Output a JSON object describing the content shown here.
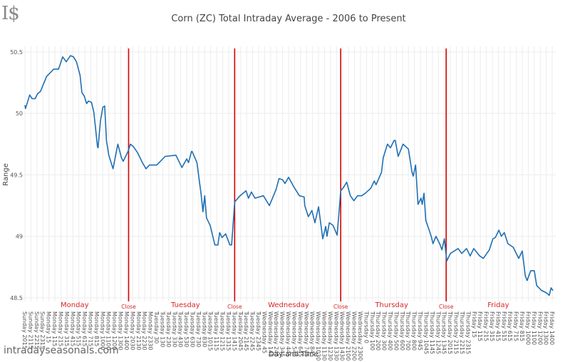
{
  "logo_text": "I$",
  "site_name": "intradayseasonals.com",
  "chart_data": {
    "type": "line",
    "title": "Corn (ZC) Total Intraday Average - 2006 to Present",
    "xlabel": "Day and Time",
    "ylabel": "Range",
    "ylim": [
      48.47,
      50.546
    ],
    "yticks": [
      48.5,
      49,
      49.5,
      50,
      50.5
    ],
    "ytick_labels": [
      "48.5",
      "49",
      "49.5",
      "50",
      "50.5"
    ],
    "grid": true,
    "colors": {
      "line": "#1f6fb2",
      "close": "#d40000",
      "annotation": "#d62728",
      "grid": "#ececec"
    },
    "categories": [
      "Sunday 2015",
      "Sunday 2115",
      "Sunday 2215",
      "Sunday 2315",
      "Monday 15",
      "Monday 115",
      "Monday 215",
      "Monday 315",
      "Monday 415",
      "Monday 515",
      "Monday 615",
      "Monday 715",
      "Monday 815",
      "Monday 1000",
      "Monday 1100",
      "Monday 1200",
      "Monday 1300",
      "Monday 1400",
      "Monday 2030",
      "Monday 2130",
      "Monday 2230",
      "Monday 2330",
      "Tuesday 30",
      "Tuesday 130",
      "Tuesday 230",
      "Tuesday 330",
      "Tuesday 430",
      "Tuesday 530",
      "Tuesday 630",
      "Tuesday 730",
      "Tuesday 830",
      "Tuesday 1015",
      "Tuesday 1115",
      "Tuesday 1215",
      "Tuesday 1315",
      "Tuesday 1415",
      "Tuesday 2045",
      "Tuesday 2145",
      "Tuesday 2245",
      "Tuesday 2345",
      "Wednesday 45",
      "Wednesday 145",
      "Wednesday 245",
      "Wednesday 345",
      "Wednesday 445",
      "Wednesday 545",
      "Wednesday 645",
      "Wednesday 745",
      "Wednesday 845",
      "Wednesday 1030",
      "Wednesday 1130",
      "Wednesday 1230",
      "Wednesday 1330",
      "Wednesday 1430",
      "Wednesday 2100",
      "Wednesday 2200",
      "Wednesday 2300",
      "Thursday 0",
      "Thursday 100",
      "Thursday 200",
      "Thursday 300",
      "Thursday 400",
      "Thursday 500",
      "Thursday 600",
      "Thursday 700",
      "Thursday 800",
      "Thursday 945",
      "Thursday 1045",
      "Thursday 1145",
      "Thursday 1245",
      "Thursday 1345",
      "Thursday 2015",
      "Thursday 2115",
      "Thursday 2215",
      "Thursday 2315",
      "Friday 15",
      "Friday 115",
      "Friday 215",
      "Friday 315",
      "Friday 415",
      "Friday 515",
      "Friday 615",
      "Friday 715",
      "Friday 815",
      "Friday 1000",
      "Friday 1100",
      "Friday 1200",
      "Friday 1300",
      "Friday 1400"
    ],
    "series": [
      {
        "name": "Average",
        "points": [
          [
            0,
            50.065
          ],
          [
            0.1,
            50.04
          ],
          [
            0.8,
            50.15
          ],
          [
            1.2,
            50.12
          ],
          [
            1.7,
            50.12
          ],
          [
            2.1,
            50.16
          ],
          [
            2.6,
            50.18
          ],
          [
            3.6,
            50.3
          ],
          [
            4.4,
            50.34
          ],
          [
            4.8,
            50.36
          ],
          [
            5.6,
            50.36
          ],
          [
            6.3,
            50.46
          ],
          [
            6.9,
            50.42
          ],
          [
            7.6,
            50.47
          ],
          [
            8.1,
            50.46
          ],
          [
            8.6,
            50.42
          ],
          [
            9.2,
            50.31
          ],
          [
            9.5,
            50.17
          ],
          [
            9.9,
            50.14
          ],
          [
            10.3,
            50.08
          ],
          [
            10.6,
            50.1
          ],
          [
            11.1,
            50.09
          ],
          [
            11.5,
            50.01
          ],
          [
            12.1,
            49.73
          ],
          [
            12.2,
            49.72
          ],
          [
            12.6,
            49.94
          ],
          [
            13.0,
            50.05
          ],
          [
            13.3,
            50.06
          ],
          [
            13.6,
            49.78
          ],
          [
            14.0,
            49.66
          ],
          [
            14.7,
            49.55
          ],
          [
            15.5,
            49.75
          ],
          [
            16.1,
            49.64
          ],
          [
            16.4,
            49.61
          ],
          [
            16.9,
            49.66
          ],
          [
            17.2,
            49.69
          ],
          [
            17.6,
            49.75
          ],
          [
            18.1,
            49.73
          ],
          [
            18.8,
            49.68
          ],
          [
            19.6,
            49.6
          ],
          [
            20.2,
            49.55
          ],
          [
            20.8,
            49.58
          ],
          [
            22.0,
            49.58
          ],
          [
            23.4,
            49.65
          ],
          [
            25.2,
            49.66
          ],
          [
            26.2,
            49.56
          ],
          [
            27.0,
            49.63
          ],
          [
            27.3,
            49.6
          ],
          [
            27.8,
            49.69
          ],
          [
            27.9,
            49.69
          ],
          [
            28.7,
            49.6
          ],
          [
            29.4,
            49.34
          ],
          [
            29.7,
            49.2
          ],
          [
            30.0,
            49.33
          ],
          [
            30.3,
            49.15
          ],
          [
            30.9,
            49.09
          ],
          [
            31.7,
            48.93
          ],
          [
            32.2,
            48.93
          ],
          [
            32.5,
            49.03
          ],
          [
            32.9,
            48.99
          ],
          [
            33.5,
            49.02
          ],
          [
            34.2,
            48.93
          ],
          [
            34.5,
            48.93
          ],
          [
            35.0,
            49.28
          ],
          [
            35.9,
            49.33
          ],
          [
            36.9,
            49.37
          ],
          [
            37.3,
            49.31
          ],
          [
            37.8,
            49.36
          ],
          [
            38.4,
            49.31
          ],
          [
            39.8,
            49.33
          ],
          [
            40.8,
            49.25
          ],
          [
            41.9,
            49.38
          ],
          [
            42.4,
            49.47
          ],
          [
            43.0,
            49.46
          ],
          [
            43.4,
            49.43
          ],
          [
            44.0,
            49.48
          ],
          [
            44.9,
            49.4
          ],
          [
            45.8,
            49.33
          ],
          [
            46.6,
            49.32
          ],
          [
            46.7,
            49.25
          ],
          [
            47.3,
            49.16
          ],
          [
            47.9,
            49.21
          ],
          [
            48.4,
            49.11
          ],
          [
            49.0,
            49.24
          ],
          [
            49.7,
            48.98
          ],
          [
            50.2,
            49.08
          ],
          [
            50.4,
            49.0
          ],
          [
            50.8,
            49.11
          ],
          [
            51.4,
            49.09
          ],
          [
            52.1,
            49.01
          ],
          [
            52.7,
            49.37
          ],
          [
            53.2,
            49.4
          ],
          [
            53.7,
            49.44
          ],
          [
            54.3,
            49.33
          ],
          [
            54.9,
            49.29
          ],
          [
            55.5,
            49.33
          ],
          [
            56.2,
            49.33
          ],
          [
            56.8,
            49.35
          ],
          [
            57.7,
            49.39
          ],
          [
            58.3,
            49.45
          ],
          [
            58.6,
            49.42
          ],
          [
            59.5,
            49.52
          ],
          [
            59.8,
            49.64
          ],
          [
            60.5,
            49.75
          ],
          [
            61.0,
            49.72
          ],
          [
            61.6,
            49.78
          ],
          [
            61.8,
            49.78
          ],
          [
            62.3,
            49.65
          ],
          [
            63.1,
            49.75
          ],
          [
            64.0,
            49.71
          ],
          [
            64.6,
            49.52
          ],
          [
            64.8,
            49.49
          ],
          [
            65.2,
            49.58
          ],
          [
            65.6,
            49.26
          ],
          [
            66.1,
            49.31
          ],
          [
            66.3,
            49.26
          ],
          [
            66.6,
            49.35
          ],
          [
            66.9,
            49.13
          ],
          [
            67.4,
            49.06
          ],
          [
            67.8,
            49.0
          ],
          [
            68.1,
            48.94
          ],
          [
            68.6,
            49.0
          ],
          [
            69.2,
            48.94
          ],
          [
            69.6,
            48.89
          ],
          [
            70.0,
            48.98
          ],
          [
            70.4,
            48.8
          ],
          [
            71.0,
            48.86
          ],
          [
            72.3,
            48.9
          ],
          [
            72.9,
            48.86
          ],
          [
            73.7,
            48.9
          ],
          [
            74.3,
            48.84
          ],
          [
            74.9,
            48.9
          ],
          [
            75.9,
            48.84
          ],
          [
            76.5,
            48.82
          ],
          [
            77.5,
            48.89
          ],
          [
            78.1,
            48.98
          ],
          [
            78.5,
            48.99
          ],
          [
            79.1,
            49.05
          ],
          [
            79.5,
            49.0
          ],
          [
            80.0,
            49.03
          ],
          [
            80.6,
            48.94
          ],
          [
            81.5,
            48.91
          ],
          [
            82.4,
            48.82
          ],
          [
            83.0,
            48.88
          ],
          [
            83.2,
            48.8
          ],
          [
            83.5,
            48.68
          ],
          [
            83.8,
            48.64
          ],
          [
            84.4,
            48.72
          ],
          [
            85.0,
            48.72
          ],
          [
            85.4,
            48.6
          ],
          [
            86.2,
            48.56
          ],
          [
            87.0,
            48.54
          ],
          [
            87.5,
            48.52
          ],
          [
            87.8,
            48.58
          ],
          [
            88.1,
            48.56
          ]
        ]
      }
    ],
    "close_markers": [
      {
        "x": 17.3,
        "label": "Close"
      },
      {
        "x": 35.0,
        "label": "Close"
      },
      {
        "x": 52.7,
        "label": "Close"
      },
      {
        "x": 70.3,
        "label": "Close"
      }
    ],
    "day_annotations": [
      {
        "x": 8.3,
        "label": "Monday"
      },
      {
        "x": 26.8,
        "label": "Tuesday"
      },
      {
        "x": 44.0,
        "label": "Wednesday"
      },
      {
        "x": 61.2,
        "label": "Thursday"
      },
      {
        "x": 79.0,
        "label": "Friday"
      }
    ]
  }
}
